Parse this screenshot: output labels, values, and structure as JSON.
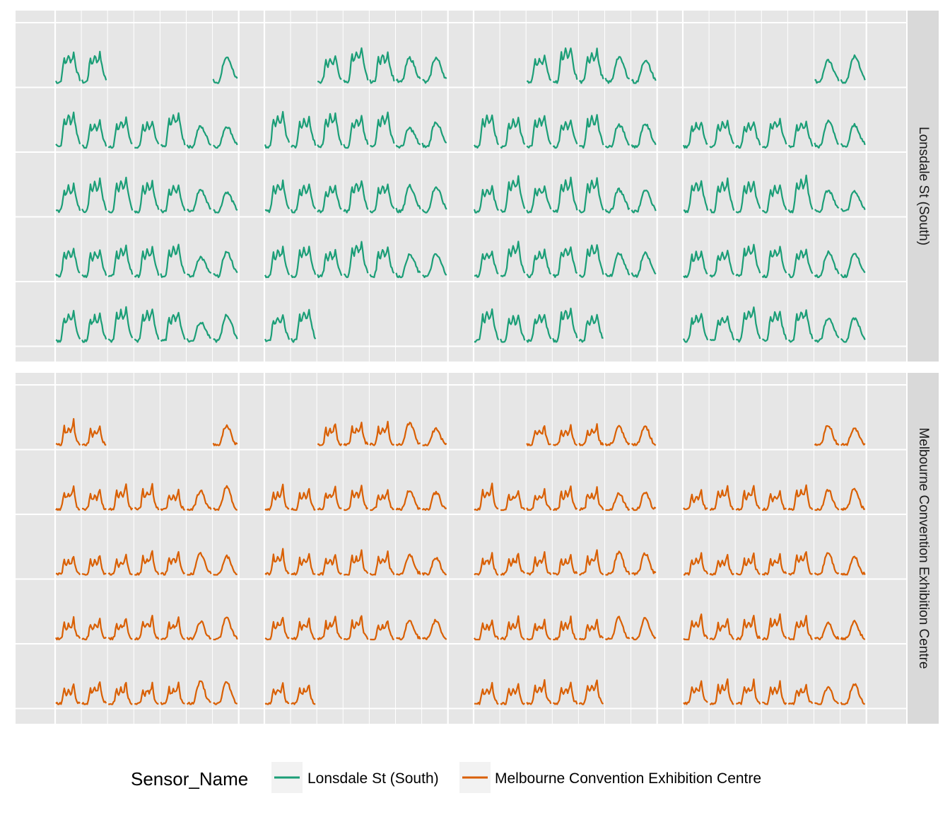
{
  "chart_data": {
    "type": "line",
    "title": "",
    "xlabel": "",
    "ylabel": "",
    "layout": "calendar",
    "grid": true,
    "legend": {
      "title": "Sensor_Name",
      "position": "bottom",
      "entries": [
        "Lonsdale St (South)",
        "Melbourne Convention Exhibition Centre"
      ]
    },
    "facets": [
      "Lonsdale St (South)",
      "Melbourne Convention Exhibition Centre"
    ],
    "calendar": {
      "months": 4,
      "weeks_per_month": 5,
      "days_per_week": 7,
      "note_units": "day cells with hourly pedestrian counts"
    },
    "series": [
      {
        "name": "Lonsdale St (South)",
        "color": "#1b9e77",
        "month_day_ranges": [
          {
            "first_week_start_day": 0,
            "last_week_end_day": 6,
            "missing_days": [
              2,
              3,
              4,
              5
            ]
          },
          {
            "first_week_start_day": 2,
            "last_week_end_day": 1
          },
          {
            "first_week_start_day": 2,
            "last_week_end_day": 4
          },
          {
            "first_week_start_day": 5,
            "last_week_end_day": 6
          }
        ],
        "typical_weekday_profile": [
          0.05,
          0.03,
          0.02,
          0.02,
          0.03,
          0.08,
          0.22,
          0.45,
          0.62,
          0.5,
          0.48,
          0.58,
          0.7,
          0.62,
          0.52,
          0.55,
          0.62,
          0.75,
          0.58,
          0.42,
          0.3,
          0.22,
          0.15,
          0.08
        ],
        "typical_weekend_profile": [
          0.08,
          0.05,
          0.03,
          0.02,
          0.02,
          0.03,
          0.06,
          0.12,
          0.22,
          0.35,
          0.45,
          0.52,
          0.56,
          0.58,
          0.55,
          0.52,
          0.48,
          0.42,
          0.35,
          0.28,
          0.22,
          0.16,
          0.12,
          0.08
        ]
      },
      {
        "name": "Melbourne Convention Exhibition Centre",
        "color": "#d95f02",
        "month_day_ranges": [
          {
            "first_week_start_day": 0,
            "last_week_end_day": 6,
            "missing_days": [
              2,
              3,
              4,
              5
            ]
          },
          {
            "first_week_start_day": 2,
            "last_week_end_day": 1
          },
          {
            "first_week_start_day": 2,
            "last_week_end_day": 4
          },
          {
            "first_week_start_day": 5,
            "last_week_end_day": 6
          }
        ],
        "typical_weekday_profile": [
          0.02,
          0.01,
          0.01,
          0.01,
          0.01,
          0.03,
          0.1,
          0.28,
          0.42,
          0.3,
          0.26,
          0.32,
          0.4,
          0.34,
          0.3,
          0.34,
          0.45,
          0.55,
          0.32,
          0.18,
          0.1,
          0.06,
          0.04,
          0.02
        ],
        "typical_weekend_profile": [
          0.02,
          0.01,
          0.01,
          0.01,
          0.01,
          0.02,
          0.04,
          0.08,
          0.16,
          0.26,
          0.36,
          0.42,
          0.46,
          0.48,
          0.46,
          0.42,
          0.36,
          0.28,
          0.2,
          0.14,
          0.09,
          0.06,
          0.04,
          0.02
        ]
      }
    ]
  }
}
